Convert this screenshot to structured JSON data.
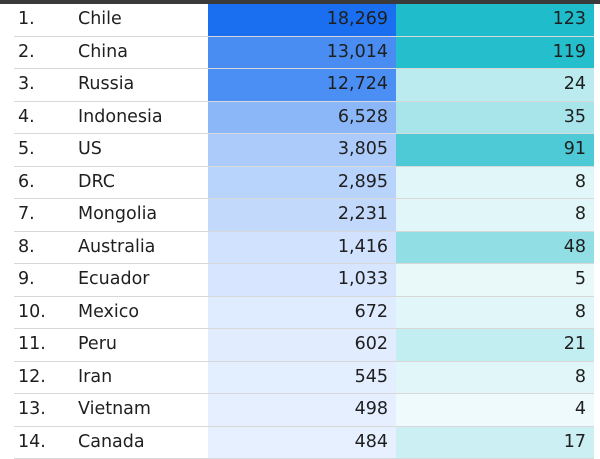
{
  "chart_data": {
    "type": "table",
    "title": "",
    "columns": [
      "",
      "",
      "",
      ""
    ],
    "rows": [
      {
        "rank": "1.",
        "country": "Chile",
        "v1": 18269,
        "v1_text": "18,269",
        "v2": 123,
        "v2_text": "123"
      },
      {
        "rank": "2.",
        "country": "China",
        "v1": 13014,
        "v1_text": "13,014",
        "v2": 119,
        "v2_text": "119"
      },
      {
        "rank": "3.",
        "country": "Russia",
        "v1": 12724,
        "v1_text": "12,724",
        "v2": 24,
        "v2_text": "24"
      },
      {
        "rank": "4.",
        "country": "Indonesia",
        "v1": 6528,
        "v1_text": "6,528",
        "v2": 35,
        "v2_text": "35"
      },
      {
        "rank": "5.",
        "country": "US",
        "v1": 3805,
        "v1_text": "3,805",
        "v2": 91,
        "v2_text": "91"
      },
      {
        "rank": "6.",
        "country": "DRC",
        "v1": 2895,
        "v1_text": "2,895",
        "v2": 8,
        "v2_text": "8"
      },
      {
        "rank": "7.",
        "country": "Mongolia",
        "v1": 2231,
        "v1_text": "2,231",
        "v2": 8,
        "v2_text": "8"
      },
      {
        "rank": "8.",
        "country": "Australia",
        "v1": 1416,
        "v1_text": "1,416",
        "v2": 48,
        "v2_text": "48"
      },
      {
        "rank": "9.",
        "country": "Ecuador",
        "v1": 1033,
        "v1_text": "1,033",
        "v2": 5,
        "v2_text": "5"
      },
      {
        "rank": "10.",
        "country": "Mexico",
        "v1": 672,
        "v1_text": "672",
        "v2": 8,
        "v2_text": "8"
      },
      {
        "rank": "11.",
        "country": "Peru",
        "v1": 602,
        "v1_text": "602",
        "v2": 21,
        "v2_text": "21"
      },
      {
        "rank": "12.",
        "country": "Iran",
        "v1": 545,
        "v1_text": "545",
        "v2": 8,
        "v2_text": "8"
      },
      {
        "rank": "13.",
        "country": "Vietnam",
        "v1": 498,
        "v1_text": "498",
        "v2": 4,
        "v2_text": "4"
      },
      {
        "rank": "14.",
        "country": "Canada",
        "v1": 484,
        "v1_text": "484",
        "v2": 17,
        "v2_text": "17"
      }
    ],
    "colors": {
      "v1_low": "#e6f0ff",
      "v1_high": "#1a6ff0",
      "v2_low": "#eefafb",
      "v2_high": "#1fbccb"
    }
  }
}
